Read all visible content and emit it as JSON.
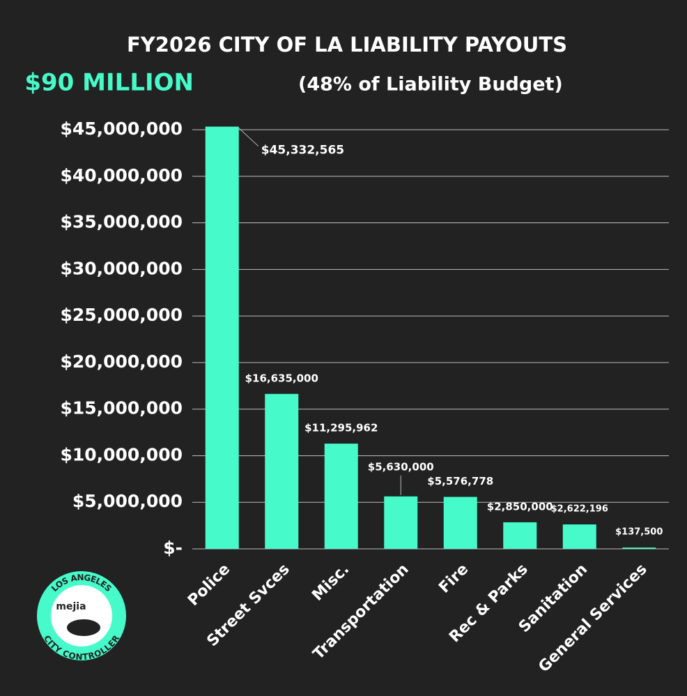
{
  "chart_data": {
    "type": "bar",
    "title": "FY2026 CITY OF LA LIABILITY PAYOUTS",
    "subtitle_highlight": "$90 MILLION",
    "subtitle": "(48% of Liability Budget)",
    "categories": [
      "Police",
      "Street Svces",
      "Misc.",
      "Transportation",
      "Fire",
      "Rec & Parks",
      "Sanitation",
      "General Services"
    ],
    "values": [
      45332565,
      16635000,
      11295962,
      5630000,
      5576778,
      2850000,
      2622196,
      137500
    ],
    "value_labels": [
      "$45,332,565",
      "$16,635,000",
      "$11,295,962",
      "$5,630,000",
      "$5,576,778",
      "$2,850,000",
      "$2,622,196",
      "$137,500"
    ],
    "color": "#46fbc9",
    "ylim": [
      0,
      45000000
    ],
    "yticks": [
      {
        "value": 0,
        "label": "$-"
      },
      {
        "value": 5000000,
        "label": "$5,000,000"
      },
      {
        "value": 10000000,
        "label": "$10,000,000"
      },
      {
        "value": 15000000,
        "label": "$15,000,000"
      },
      {
        "value": 20000000,
        "label": "$20,000,000"
      },
      {
        "value": 25000000,
        "label": "$25,000,000"
      },
      {
        "value": 30000000,
        "label": "$30,000,000"
      },
      {
        "value": 35000000,
        "label": "$35,000,000"
      },
      {
        "value": 40000000,
        "label": "$40,000,000"
      },
      {
        "value": 45000000,
        "label": "$45,000,000"
      }
    ],
    "grid": true
  },
  "logo": {
    "top": "LOS ANGELES",
    "name": "mejia",
    "bottom": "CITY CONTROLLER"
  }
}
